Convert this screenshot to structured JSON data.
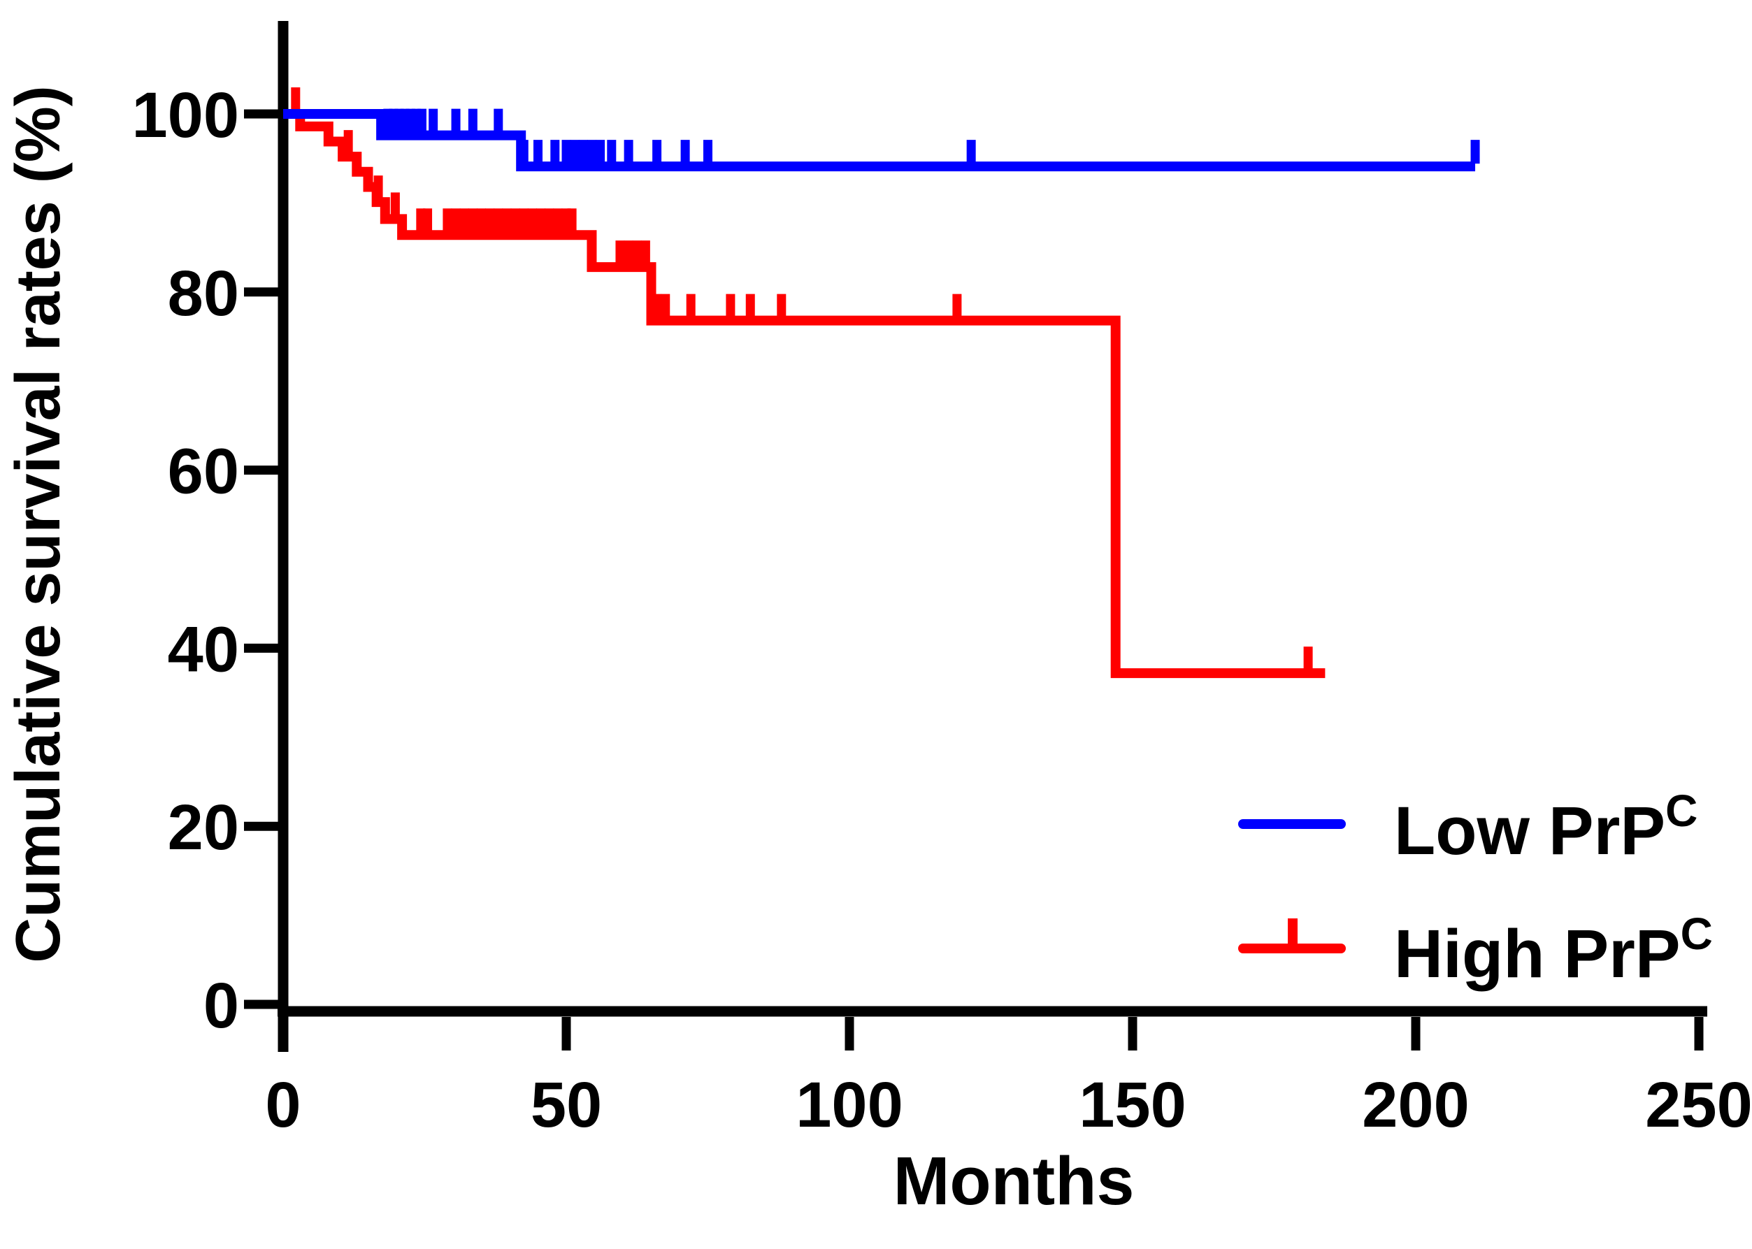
{
  "figure": {
    "background": "#ffffff",
    "axis_color": "#000000",
    "text_color": "#000000"
  },
  "chart_data": {
    "type": "line",
    "subtype": "kaplan-meier-step",
    "title": "",
    "xlabel": "Months",
    "ylabel": "Cumulative survival rates (%)",
    "xlim": [
      0,
      250
    ],
    "ylim": [
      0,
      100
    ],
    "xticks": [
      0,
      50,
      100,
      150,
      200,
      250
    ],
    "yticks": [
      0,
      20,
      40,
      60,
      80,
      100
    ],
    "grid": false,
    "legend": {
      "position": "lower-right",
      "items": [
        {
          "label_base": "Low PrP",
          "label_sup": "C",
          "color": "#0000ff",
          "marker": "line"
        },
        {
          "label_base": "High PrP",
          "label_sup": "C",
          "color": "#ff0000",
          "marker": "line-with-censor-tick"
        }
      ]
    },
    "series": [
      {
        "name": "Low PrPC",
        "color": "#0000ff",
        "start_level_pct": 100,
        "end_month": 210.5,
        "drops": [
          [
            17.3,
            97.6
          ],
          [
            42,
            94.1
          ]
        ],
        "censor_months": [
          18.5,
          19.5,
          20.5,
          21.5,
          22.5,
          23.5,
          24.5,
          26.5,
          30.5,
          33.5,
          38,
          42.5,
          45,
          48,
          50,
          51.5,
          53,
          54.5,
          56,
          58,
          61,
          66,
          71,
          75,
          121.5,
          210.5
        ]
      },
      {
        "name": "High PrPC",
        "color": "#ff0000",
        "start_level_pct": 100,
        "end_month": 184,
        "drops": [
          [
            3,
            98.6
          ],
          [
            8,
            96.9
          ],
          [
            10.5,
            95.2
          ],
          [
            13,
            93.5
          ],
          [
            15,
            91.8
          ],
          [
            16.5,
            90.1
          ],
          [
            18,
            88.2
          ],
          [
            21,
            86.4
          ],
          [
            54.5,
            82.8
          ],
          [
            65,
            76.8
          ],
          [
            147,
            37.2
          ]
        ],
        "censor_months": [
          2.2,
          11.5,
          16.8,
          19.8,
          24.3,
          25.5,
          29,
          30.5,
          32,
          33.5,
          35,
          36.5,
          38,
          39.5,
          41,
          42.5,
          44,
          45.5,
          47,
          48.5,
          50,
          51,
          59.5,
          61,
          62.5,
          64,
          66,
          67.5,
          72,
          79,
          82.5,
          88,
          119,
          181
        ]
      }
    ]
  }
}
